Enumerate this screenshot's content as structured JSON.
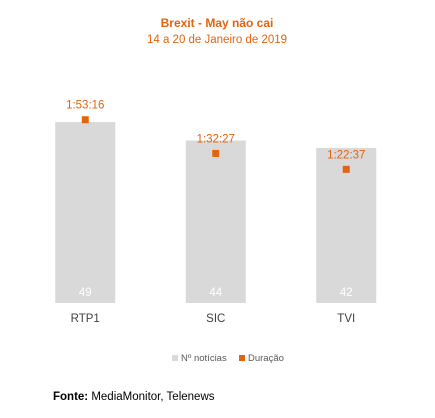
{
  "chart_data": {
    "type": "bar",
    "title": "Brexit - May não cai",
    "subtitle": "14 a 20 de Janeiro de 2019",
    "categories": [
      "RTP1",
      "SIC",
      "TVI"
    ],
    "series": [
      {
        "name": "Nº notícias",
        "type": "bar",
        "values": [
          49,
          44,
          42
        ],
        "color": "#d9d9d9"
      },
      {
        "name": "Duração",
        "type": "scatter",
        "values": [
          "1:53:16",
          "1:32:27",
          "1:22:37"
        ],
        "seconds": [
          6796,
          5547,
          4957
        ],
        "color": "#e2640f"
      }
    ],
    "ylim_count": [
      0,
      65
    ],
    "ylim_duration_seconds": [
      0,
      8900
    ],
    "grid": false,
    "legend": "bottom"
  },
  "source": {
    "label": "Fonte:",
    "text": " MediaMonitor, Telenews"
  },
  "colors": {
    "accent": "#e2640f",
    "bar": "#d9d9d9",
    "text": "#404040"
  }
}
